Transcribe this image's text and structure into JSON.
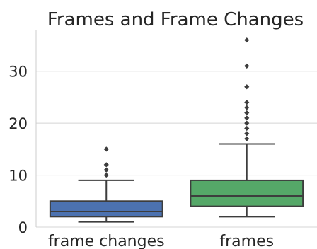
{
  "chart_data": {
    "type": "box",
    "title": "Frames and Frame Changes",
    "xlabel": "",
    "ylabel": "",
    "ylim": [
      0,
      38
    ],
    "yticks": [
      0,
      10,
      20,
      30
    ],
    "grid": true,
    "categories": [
      "frame changes",
      "frames"
    ],
    "boxes": [
      {
        "category": "frame changes",
        "color": "#4c72b0",
        "whisker_low": 1,
        "q1": 2,
        "median": 3,
        "q3": 5,
        "whisker_high": 9,
        "outliers": [
          10,
          11,
          12,
          15
        ]
      },
      {
        "category": "frames",
        "color": "#55a868",
        "whisker_low": 2,
        "q1": 4,
        "median": 6,
        "q3": 9,
        "whisker_high": 16,
        "outliers": [
          17,
          18,
          19,
          20,
          21,
          22,
          23,
          24,
          27,
          31,
          36
        ]
      }
    ]
  }
}
